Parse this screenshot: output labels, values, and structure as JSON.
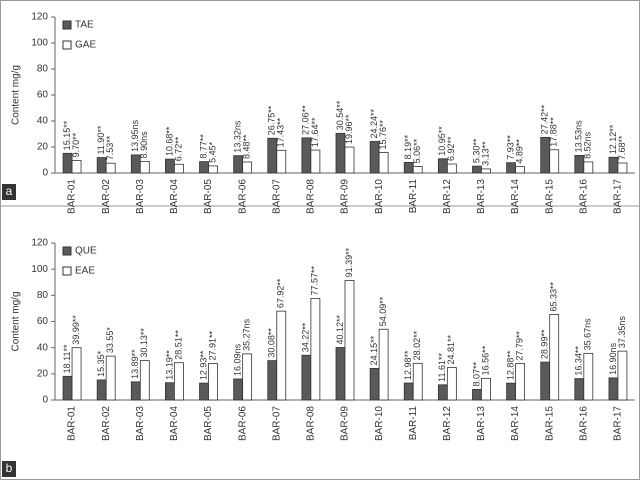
{
  "chart_data": [
    {
      "type": "bar",
      "panel_label": "a",
      "y_label": "Content mg/g",
      "categories": [
        "BAR-01",
        "BAR-02",
        "BAR-03",
        "BAR-04",
        "BAR-05",
        "BAR-06",
        "BAR-07",
        "BAR-08",
        "BAR-09",
        "BAR-10",
        "BAR-11",
        "BAR-12",
        "BAR-13",
        "BAR-14",
        "BAR-15",
        "BAR-16",
        "BAR-17"
      ],
      "series": [
        {
          "name": "TAE",
          "color": "#5a5a5a",
          "values": [
            15.15,
            11.9,
            13.95,
            10.68,
            8.77,
            13.32,
            26.75,
            27.06,
            30.54,
            24.24,
            8.19,
            10.95,
            5.3,
            7.93,
            27.42,
            13.53,
            12.12
          ],
          "value_labels": [
            "15.15**",
            "11.90**",
            "13.95ns",
            "10.68**",
            "8.77**",
            "13.32ns",
            "26.75**",
            "27.06**",
            "30.54**",
            "24.24**",
            "8.19**",
            "10.95**",
            "5.30**",
            "7.93**",
            "27.42**",
            "13.53ns",
            "12.12**"
          ]
        },
        {
          "name": "GAE",
          "color": "#ffffff",
          "values": [
            9.7,
            7.53,
            8.9,
            6.72,
            5.45,
            8.48,
            17.43,
            17.64,
            19.96,
            15.76,
            5.06,
            6.92,
            3.13,
            4.89,
            17.88,
            8.52,
            7.68
          ],
          "value_labels": [
            "9.70**",
            "7.53**",
            "8.90ns",
            "6.72**",
            "5.45*",
            "8.48**",
            "17.43**",
            "17.64**",
            "19.96**",
            "15.76**",
            "5.06**",
            "6.92**",
            "3.13**",
            "4.89**",
            "17.88**",
            "8.52ns",
            "7.68**"
          ]
        }
      ],
      "ylim": [
        0,
        120
      ],
      "yticks": [
        0,
        20,
        40,
        60,
        80,
        100,
        120
      ],
      "legend": "upper-left"
    },
    {
      "type": "bar",
      "panel_label": "b",
      "y_label": "Content mg/g",
      "categories": [
        "BAR-01",
        "BAR-02",
        "BAR-03",
        "BAR-04",
        "BAR-05",
        "BAR-06",
        "BAR-07",
        "BAR-08",
        "BAR-09",
        "BAR-10",
        "BAR-11",
        "BAR-12",
        "BAR-13",
        "BAR-14",
        "BAR-15",
        "BAR-16",
        "BAR-17"
      ],
      "series": [
        {
          "name": "QUE",
          "color": "#5a5a5a",
          "values": [
            18.11,
            15.35,
            13.89,
            13.19,
            12.93,
            16.09,
            30.08,
            34.22,
            40.12,
            24.15,
            12.98,
            11.61,
            8.07,
            12.88,
            28.99,
            16.34,
            16.9
          ],
          "value_labels": [
            "18.11**",
            "15.35*",
            "13.89**",
            "13.19**",
            "12.93**",
            "16.09ns",
            "30.08**",
            "34.22**",
            "40.12**",
            "24.15**",
            "12.98**",
            "11.61**",
            "8.07**",
            "12.88**",
            "28.99**",
            "16.34**",
            "16.90ns"
          ]
        },
        {
          "name": "EAE",
          "color": "#ffffff",
          "values": [
            39.99,
            33.55,
            30.13,
            28.51,
            27.91,
            35.27,
            67.92,
            77.57,
            91.39,
            54.09,
            28.02,
            24.81,
            16.56,
            27.79,
            65.33,
            35.67,
            37.35
          ],
          "value_labels": [
            "39.99**",
            "33.55*",
            "30.13**",
            "28.51**",
            "27.91**",
            "35.27ns",
            "67.92**",
            "77.57**",
            "91.39**",
            "54.09**",
            "28.02**",
            "24.81**",
            "16.56**",
            "27.79**",
            "65.33**",
            "35.67ns",
            "37.35ns"
          ]
        }
      ],
      "ylim": [
        0,
        120
      ],
      "yticks": [
        0,
        20,
        40,
        60,
        80,
        100,
        120
      ],
      "legend": "upper-left"
    }
  ]
}
